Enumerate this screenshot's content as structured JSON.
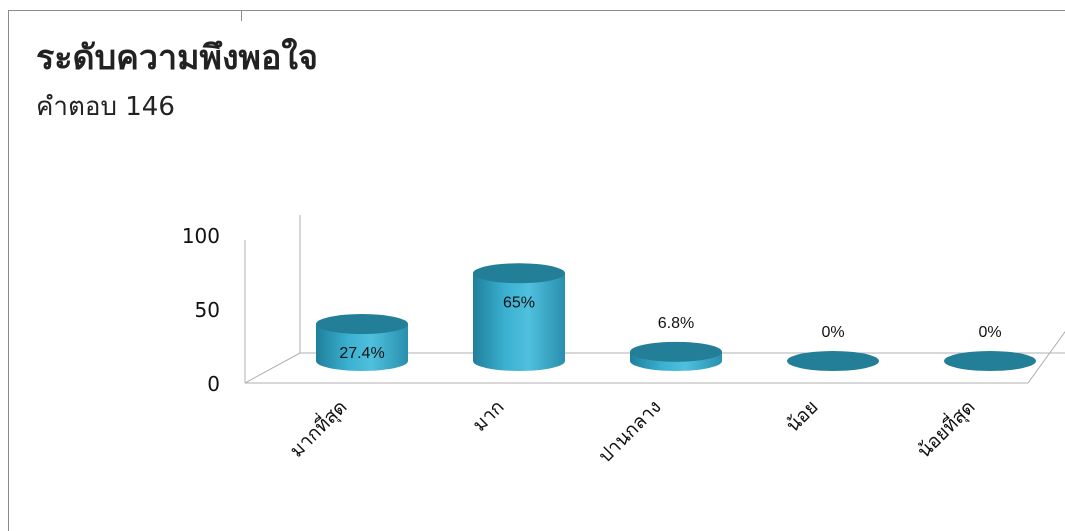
{
  "title": "ระดับความพึงพอใจ",
  "subtitle": "คำตอบ 146",
  "chart_data": {
    "type": "bar",
    "style": "3d-cylinder",
    "categories": [
      "มากที่สุด",
      "มาก",
      "ปานกลาง",
      "น้อย",
      "น้อยที่สุด"
    ],
    "values": [
      27.4,
      65,
      6.8,
      0,
      0
    ],
    "data_labels": [
      "27.4%",
      "65%",
      "6.8%",
      "0%",
      "0%"
    ],
    "yticks": [
      "0",
      "50",
      "100"
    ],
    "ylim": [
      0,
      100
    ],
    "grid": false,
    "legend": "none",
    "colors": {
      "bar_side": "#2a93b3",
      "bar_top": "#237f98",
      "axis": "#b0b0b0"
    }
  }
}
